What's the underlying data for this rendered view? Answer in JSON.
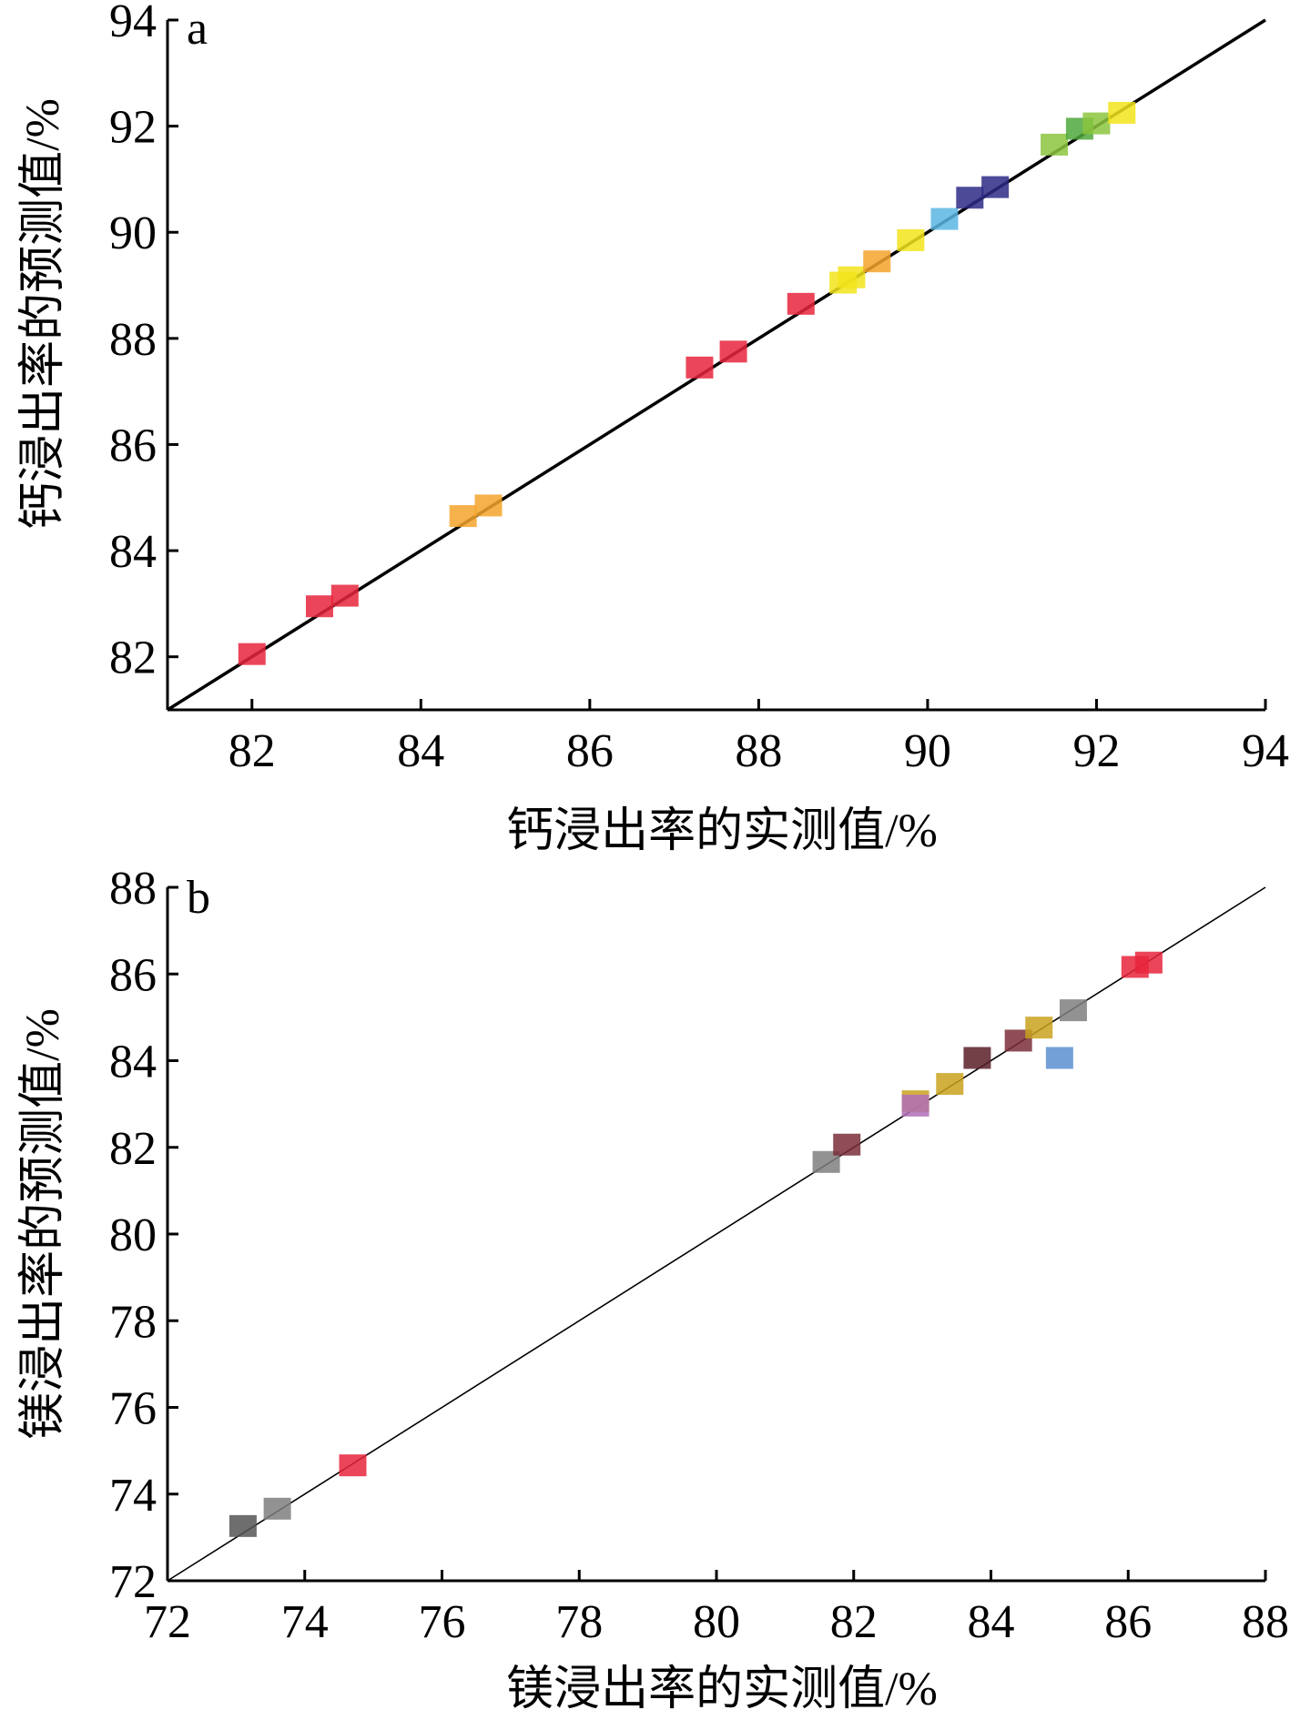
{
  "chart_data": [
    {
      "type": "scatter",
      "panel_label": "a",
      "xlabel": "钙浸出率的实测值/%",
      "ylabel": "钙浸出率的预测值/%",
      "xlim": [
        81,
        94
      ],
      "ylim": [
        81,
        94
      ],
      "xticks": [
        "82",
        "84",
        "86",
        "88",
        "90",
        "92",
        "94"
      ],
      "yticks": [
        "82",
        "84",
        "86",
        "88",
        "90",
        "92",
        "94"
      ],
      "reference_line": {
        "from": [
          81,
          81
        ],
        "to": [
          94,
          94
        ]
      },
      "points": [
        {
          "x": 82.0,
          "y": 82.0,
          "color": "#e8253c"
        },
        {
          "x": 82.8,
          "y": 82.9,
          "color": "#e8253c"
        },
        {
          "x": 83.1,
          "y": 83.1,
          "color": "#e8253c"
        },
        {
          "x": 84.5,
          "y": 84.6,
          "color": "#f4a52a"
        },
        {
          "x": 84.8,
          "y": 84.8,
          "color": "#f4a52a"
        },
        {
          "x": 87.3,
          "y": 87.4,
          "color": "#e8253c"
        },
        {
          "x": 87.7,
          "y": 87.7,
          "color": "#e8253c"
        },
        {
          "x": 88.5,
          "y": 88.6,
          "color": "#e8253c"
        },
        {
          "x": 89.0,
          "y": 89.0,
          "color": "#f2e41a"
        },
        {
          "x": 89.1,
          "y": 89.1,
          "color": "#f2e41a"
        },
        {
          "x": 89.4,
          "y": 89.4,
          "color": "#f4a52a"
        },
        {
          "x": 89.8,
          "y": 89.8,
          "color": "#f2e41a"
        },
        {
          "x": 90.2,
          "y": 90.2,
          "color": "#5bb6e3"
        },
        {
          "x": 90.5,
          "y": 90.6,
          "color": "#2e2a86"
        },
        {
          "x": 90.8,
          "y": 90.8,
          "color": "#2e2a86"
        },
        {
          "x": 91.5,
          "y": 91.6,
          "color": "#8cc63e"
        },
        {
          "x": 91.8,
          "y": 91.9,
          "color": "#4fa83d"
        },
        {
          "x": 92.0,
          "y": 92.0,
          "color": "#8cc63e"
        },
        {
          "x": 92.3,
          "y": 92.2,
          "color": "#f2e41a"
        }
      ]
    },
    {
      "type": "scatter",
      "panel_label": "b",
      "xlabel": "镁浸出率的实测值/%",
      "ylabel": "镁浸出率的预测值/%",
      "xlim": [
        72,
        88
      ],
      "ylim": [
        72,
        88
      ],
      "xticks": [
        "72",
        "74",
        "76",
        "78",
        "80",
        "82",
        "84",
        "86",
        "88"
      ],
      "yticks": [
        "72",
        "74",
        "76",
        "78",
        "80",
        "82",
        "84",
        "86",
        "88"
      ],
      "reference_line": {
        "from": [
          72,
          72
        ],
        "to": [
          88,
          88
        ]
      },
      "points": [
        {
          "x": 73.1,
          "y": 73.2,
          "color": "#555555"
        },
        {
          "x": 73.6,
          "y": 73.6,
          "color": "#7f7f7f"
        },
        {
          "x": 74.7,
          "y": 74.6,
          "color": "#e8253c"
        },
        {
          "x": 81.6,
          "y": 81.6,
          "color": "#7f7f7f"
        },
        {
          "x": 81.9,
          "y": 82.0,
          "color": "#7a2e3a"
        },
        {
          "x": 82.9,
          "y": 83.0,
          "color": "#c9a21e"
        },
        {
          "x": 82.9,
          "y": 82.9,
          "color": "#b06fb8"
        },
        {
          "x": 83.4,
          "y": 83.4,
          "color": "#c9a21e"
        },
        {
          "x": 83.8,
          "y": 84.0,
          "color": "#5a1e28"
        },
        {
          "x": 84.4,
          "y": 84.4,
          "color": "#7a2e3a"
        },
        {
          "x": 84.7,
          "y": 84.7,
          "color": "#c9a21e"
        },
        {
          "x": 85.0,
          "y": 84.0,
          "color": "#5b8fd0"
        },
        {
          "x": 85.2,
          "y": 85.1,
          "color": "#7f7f7f"
        },
        {
          "x": 86.1,
          "y": 86.1,
          "color": "#e8253c"
        },
        {
          "x": 86.3,
          "y": 86.2,
          "color": "#e8253c"
        }
      ]
    }
  ]
}
